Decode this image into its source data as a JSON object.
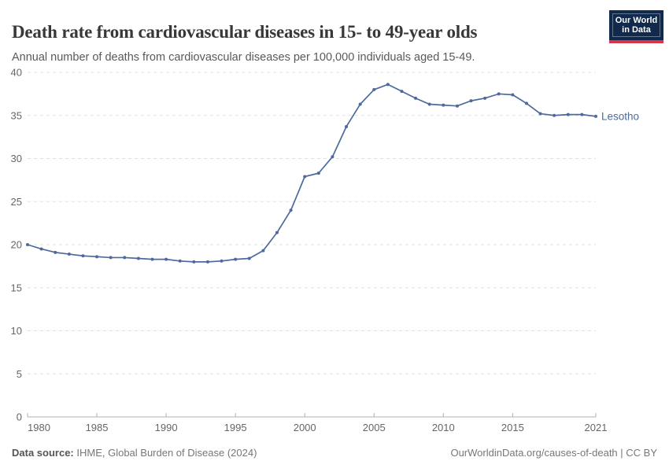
{
  "header": {
    "title": "Death rate from cardiovascular diseases in 15- to 49-year olds",
    "subtitle": "Annual number of deaths from cardiovascular diseases per 100,000 individuals aged 15-49.",
    "logo": {
      "line1": "Our World",
      "line2": "in Data"
    }
  },
  "chart_data": {
    "type": "line",
    "title": "Death rate from cardiovascular diseases in 15- to 49-year olds",
    "xlabel": "",
    "ylabel": "",
    "xlim": [
      1980,
      2021
    ],
    "ylim": [
      0,
      40
    ],
    "xticks": [
      1980,
      1985,
      1990,
      1995,
      2000,
      2005,
      2010,
      2015,
      2021
    ],
    "yticks": [
      0,
      5,
      10,
      15,
      20,
      25,
      30,
      35,
      40
    ],
    "grid": "horizontal-dashed",
    "legend_position": "end-of-line-label",
    "series": [
      {
        "name": "Lesotho",
        "color": "#4c6a9c",
        "x": [
          1980,
          1981,
          1982,
          1983,
          1984,
          1985,
          1986,
          1987,
          1988,
          1989,
          1990,
          1991,
          1992,
          1993,
          1994,
          1995,
          1996,
          1997,
          1998,
          1999,
          2000,
          2001,
          2002,
          2003,
          2004,
          2005,
          2006,
          2007,
          2008,
          2009,
          2010,
          2011,
          2012,
          2013,
          2014,
          2015,
          2016,
          2017,
          2018,
          2019,
          2020,
          2021
        ],
        "values": [
          20.0,
          19.5,
          19.1,
          18.9,
          18.7,
          18.6,
          18.5,
          18.5,
          18.4,
          18.3,
          18.3,
          18.1,
          18.0,
          18.0,
          18.1,
          18.3,
          18.4,
          19.3,
          21.4,
          24.0,
          27.9,
          28.3,
          30.2,
          33.7,
          36.3,
          38.0,
          38.6,
          37.8,
          37.0,
          36.3,
          36.2,
          36.1,
          36.7,
          37.0,
          37.5,
          37.4,
          36.4,
          35.2,
          35.0,
          35.1,
          35.1,
          34.9
        ]
      }
    ]
  },
  "footer": {
    "source_label": "Data source:",
    "source_text": " IHME, Global Burden of Disease (2024)",
    "link_text": "OurWorldinData.org/causes-of-death | CC BY"
  },
  "colors": {
    "line": "#4c6a9c",
    "grid": "#e0e0e0",
    "axis": "#b0b0b0",
    "tick_label": "#666666",
    "logo_bg": "#10294c",
    "logo_red": "#d8354a",
    "title_text": "#383838",
    "subtitle_text": "#595959"
  }
}
